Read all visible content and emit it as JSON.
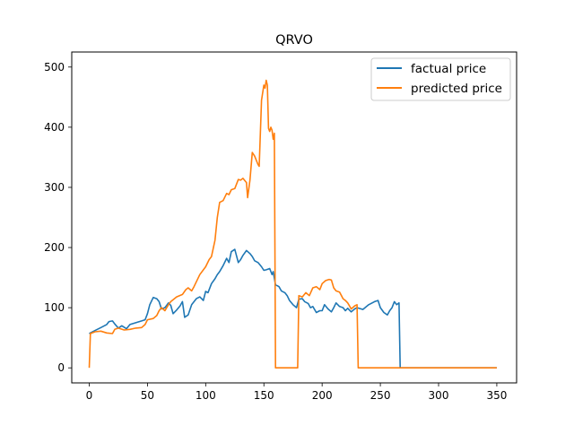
{
  "chart_data": {
    "type": "line",
    "title": "QRVO",
    "xlabel": "",
    "ylabel": "",
    "xlim": [
      -15,
      367
    ],
    "ylim": [
      -25,
      525
    ],
    "xticks": [
      0,
      50,
      100,
      150,
      200,
      250,
      300,
      350
    ],
    "yticks": [
      0,
      100,
      200,
      300,
      400,
      500
    ],
    "legend_position": "top-right",
    "series": [
      {
        "name": "factual price",
        "color": "#1f77b4",
        "points": [
          [
            0,
            57
          ],
          [
            5,
            62
          ],
          [
            10,
            67
          ],
          [
            15,
            72
          ],
          [
            17,
            77
          ],
          [
            20,
            78
          ],
          [
            22,
            73
          ],
          [
            25,
            66
          ],
          [
            28,
            70
          ],
          [
            32,
            65
          ],
          [
            35,
            72
          ],
          [
            40,
            75
          ],
          [
            45,
            78
          ],
          [
            48,
            80
          ],
          [
            50,
            90
          ],
          [
            52,
            105
          ],
          [
            55,
            117
          ],
          [
            58,
            115
          ],
          [
            60,
            110
          ],
          [
            62,
            98
          ],
          [
            65,
            100
          ],
          [
            68,
            108
          ],
          [
            70,
            104
          ],
          [
            72,
            90
          ],
          [
            75,
            96
          ],
          [
            78,
            103
          ],
          [
            80,
            110
          ],
          [
            82,
            84
          ],
          [
            85,
            88
          ],
          [
            88,
            105
          ],
          [
            92,
            115
          ],
          [
            95,
            118
          ],
          [
            98,
            112
          ],
          [
            100,
            127
          ],
          [
            102,
            125
          ],
          [
            105,
            140
          ],
          [
            108,
            148
          ],
          [
            110,
            155
          ],
          [
            112,
            160
          ],
          [
            115,
            170
          ],
          [
            118,
            182
          ],
          [
            120,
            175
          ],
          [
            122,
            193
          ],
          [
            125,
            197
          ],
          [
            128,
            175
          ],
          [
            130,
            180
          ],
          [
            132,
            187
          ],
          [
            135,
            195
          ],
          [
            138,
            190
          ],
          [
            140,
            185
          ],
          [
            142,
            178
          ],
          [
            145,
            175
          ],
          [
            148,
            168
          ],
          [
            150,
            162
          ],
          [
            152,
            163
          ],
          [
            155,
            165
          ],
          [
            157,
            155
          ],
          [
            158,
            160
          ],
          [
            160,
            138
          ],
          [
            163,
            135
          ],
          [
            165,
            128
          ],
          [
            168,
            125
          ],
          [
            170,
            120
          ],
          [
            172,
            112
          ],
          [
            175,
            105
          ],
          [
            178,
            100
          ],
          [
            180,
            114
          ],
          [
            183,
            115
          ],
          [
            185,
            110
          ],
          [
            188,
            107
          ],
          [
            190,
            100
          ],
          [
            192,
            102
          ],
          [
            195,
            92
          ],
          [
            198,
            95
          ],
          [
            200,
            95
          ],
          [
            202,
            105
          ],
          [
            205,
            98
          ],
          [
            208,
            93
          ],
          [
            210,
            100
          ],
          [
            212,
            108
          ],
          [
            215,
            102
          ],
          [
            218,
            100
          ],
          [
            220,
            95
          ],
          [
            222,
            99
          ],
          [
            225,
            93
          ],
          [
            228,
            98
          ],
          [
            230,
            100
          ],
          [
            235,
            97
          ],
          [
            240,
            105
          ],
          [
            245,
            110
          ],
          [
            248,
            112
          ],
          [
            250,
            100
          ],
          [
            253,
            92
          ],
          [
            256,
            88
          ],
          [
            258,
            95
          ],
          [
            260,
            100
          ],
          [
            262,
            110
          ],
          [
            264,
            105
          ],
          [
            266,
            108
          ],
          [
            267,
            0
          ],
          [
            280,
            0
          ],
          [
            300,
            0
          ],
          [
            320,
            0
          ],
          [
            340,
            0
          ],
          [
            350,
            0
          ]
        ]
      },
      {
        "name": "predicted price",
        "color": "#ff7f0e",
        "points": [
          [
            0,
            0
          ],
          [
            1,
            57
          ],
          [
            5,
            60
          ],
          [
            10,
            61
          ],
          [
            15,
            58
          ],
          [
            20,
            57
          ],
          [
            22,
            64
          ],
          [
            25,
            66
          ],
          [
            30,
            63
          ],
          [
            35,
            64
          ],
          [
            40,
            66
          ],
          [
            45,
            67
          ],
          [
            48,
            72
          ],
          [
            50,
            80
          ],
          [
            55,
            82
          ],
          [
            58,
            87
          ],
          [
            60,
            95
          ],
          [
            62,
            100
          ],
          [
            65,
            95
          ],
          [
            68,
            105
          ],
          [
            70,
            110
          ],
          [
            75,
            118
          ],
          [
            80,
            122
          ],
          [
            83,
            130
          ],
          [
            85,
            133
          ],
          [
            88,
            128
          ],
          [
            90,
            135
          ],
          [
            95,
            155
          ],
          [
            100,
            168
          ],
          [
            103,
            180
          ],
          [
            105,
            185
          ],
          [
            108,
            212
          ],
          [
            110,
            250
          ],
          [
            112,
            275
          ],
          [
            115,
            278
          ],
          [
            118,
            290
          ],
          [
            120,
            288
          ],
          [
            122,
            296
          ],
          [
            125,
            298
          ],
          [
            128,
            313
          ],
          [
            130,
            312
          ],
          [
            132,
            315
          ],
          [
            135,
            308
          ],
          [
            136,
            283
          ],
          [
            138,
            312
          ],
          [
            140,
            358
          ],
          [
            142,
            352
          ],
          [
            145,
            338
          ],
          [
            146,
            335
          ],
          [
            148,
            445
          ],
          [
            150,
            470
          ],
          [
            151,
            465
          ],
          [
            152,
            478
          ],
          [
            153,
            470
          ],
          [
            154,
            398
          ],
          [
            155,
            393
          ],
          [
            156,
            400
          ],
          [
            157,
            395
          ],
          [
            158,
            380
          ],
          [
            159,
            390
          ],
          [
            160,
            0
          ],
          [
            162,
            0
          ],
          [
            170,
            0
          ],
          [
            179,
            0
          ],
          [
            180,
            120
          ],
          [
            183,
            118
          ],
          [
            186,
            125
          ],
          [
            189,
            120
          ],
          [
            192,
            133
          ],
          [
            195,
            135
          ],
          [
            198,
            130
          ],
          [
            200,
            140
          ],
          [
            203,
            145
          ],
          [
            206,
            147
          ],
          [
            208,
            146
          ],
          [
            210,
            133
          ],
          [
            212,
            128
          ],
          [
            215,
            126
          ],
          [
            218,
            115
          ],
          [
            220,
            112
          ],
          [
            222,
            108
          ],
          [
            225,
            98
          ],
          [
            228,
            103
          ],
          [
            230,
            105
          ],
          [
            231,
            0
          ],
          [
            240,
            0
          ],
          [
            260,
            0
          ],
          [
            280,
            0
          ],
          [
            300,
            0
          ],
          [
            320,
            0
          ],
          [
            340,
            0
          ],
          [
            350,
            0
          ]
        ]
      }
    ]
  }
}
